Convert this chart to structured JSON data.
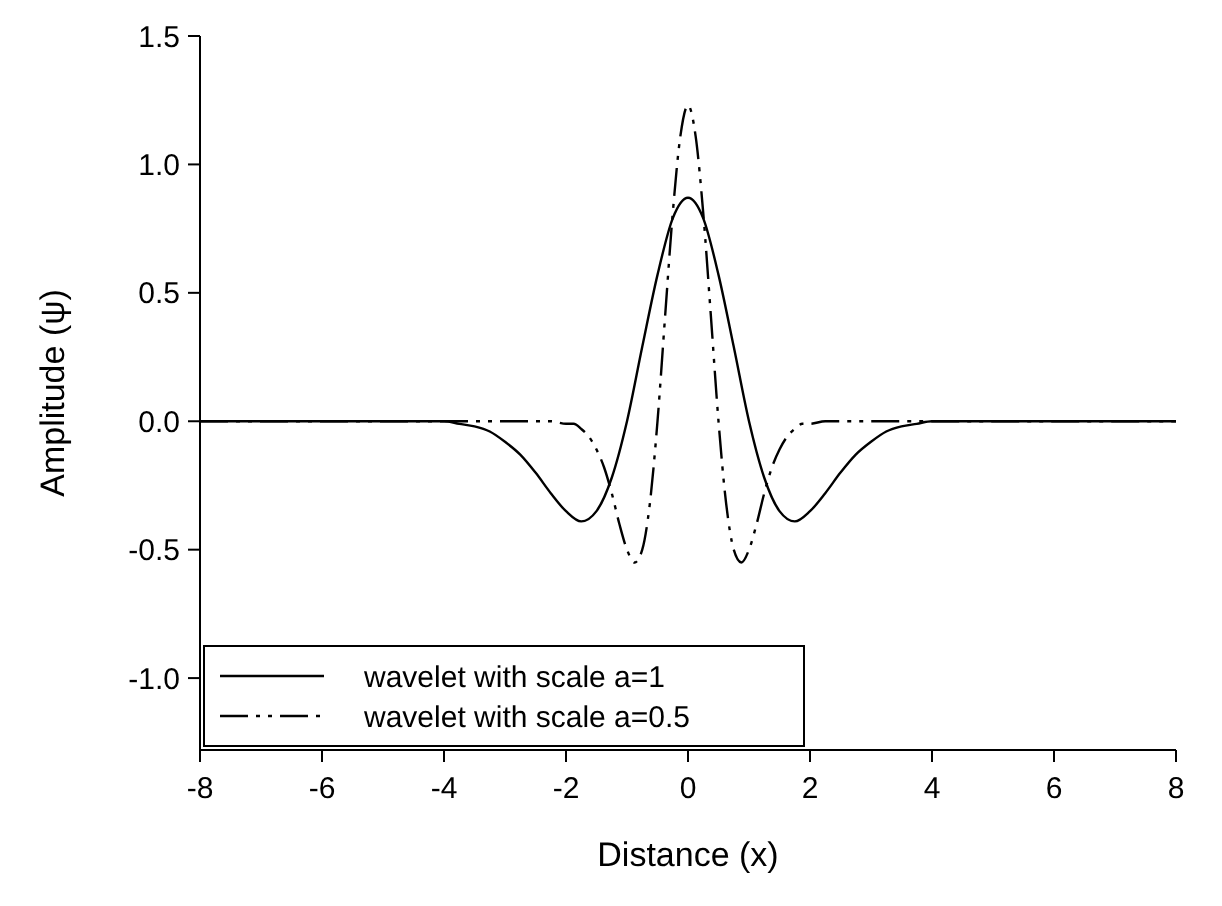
{
  "chart_data": {
    "type": "line",
    "xlabel": "Distance (x)",
    "ylabel": "Amplitude (ψ)",
    "xlim": [
      -8,
      8
    ],
    "xticks": [
      -8,
      -6,
      -4,
      -2,
      0,
      2,
      4,
      6,
      8
    ],
    "ylim": [
      -1.28,
      1.5
    ],
    "yticks": [
      {
        "value": -1,
        "label": "-1.0"
      },
      {
        "value": -0.5,
        "label": "-0.5"
      },
      {
        "value": 0,
        "label": "0.0"
      },
      {
        "value": 0.5,
        "label": "0.5"
      },
      {
        "value": 1,
        "label": "1.0"
      },
      {
        "value": 1.5,
        "label": "1.5"
      }
    ],
    "legend": "bottom left",
    "grid": false,
    "marker": "none",
    "series": [
      {
        "name": "wavelet with scale a=1",
        "color": "#000000",
        "line_style": "solid",
        "x": [
          -8,
          -5,
          -4.5,
          -4,
          -3.75,
          -3.5,
          -3.25,
          -3,
          -2.75,
          -2.5,
          -2.25,
          -2,
          -1.75,
          -1.5,
          -1.25,
          -1,
          -0.75,
          -0.5,
          -0.25,
          0,
          0.25,
          0.5,
          0.75,
          1,
          1.25,
          1.5,
          1.75,
          2,
          2.25,
          2.5,
          2.75,
          3,
          3.25,
          3.5,
          3.75,
          4,
          4.5,
          5,
          8
        ],
        "values": [
          0,
          0,
          0,
          0,
          -0.01,
          -0.02,
          -0.04,
          -0.08,
          -0.13,
          -0.2,
          -0.28,
          -0.35,
          -0.39,
          -0.35,
          -0.22,
          0,
          0.29,
          0.57,
          0.79,
          0.87,
          0.79,
          0.57,
          0.29,
          0,
          -0.22,
          -0.35,
          -0.39,
          -0.35,
          -0.28,
          -0.2,
          -0.13,
          -0.08,
          -0.04,
          -0.02,
          -0.01,
          0,
          0,
          0,
          0
        ]
      },
      {
        "name": "wavelet with scale a=0.5",
        "color": "#000000",
        "line_style": "dashed",
        "x": [
          -8,
          -2.5,
          -2.25,
          -2,
          -1.875,
          -1.75,
          -1.625,
          -1.5,
          -1.375,
          -1.25,
          -1.125,
          -1,
          -0.875,
          -0.75,
          -0.625,
          -0.5,
          -0.375,
          -0.25,
          -0.125,
          0,
          0.125,
          0.25,
          0.375,
          0.5,
          0.625,
          0.75,
          0.875,
          1,
          1.125,
          1.25,
          1.375,
          1.5,
          1.625,
          1.75,
          1.875,
          2,
          2.25,
          2.5,
          8
        ],
        "values": [
          0,
          0,
          0,
          -0.01,
          -0.01,
          -0.03,
          -0.06,
          -0.11,
          -0.18,
          -0.28,
          -0.4,
          -0.5,
          -0.55,
          -0.5,
          -0.32,
          0,
          0.41,
          0.81,
          1.11,
          1.23,
          1.11,
          0.81,
          0.41,
          0,
          -0.32,
          -0.5,
          -0.55,
          -0.5,
          -0.4,
          -0.28,
          -0.18,
          -0.11,
          -0.06,
          -0.03,
          -0.01,
          -0.01,
          0,
          0,
          0
        ]
      }
    ]
  }
}
